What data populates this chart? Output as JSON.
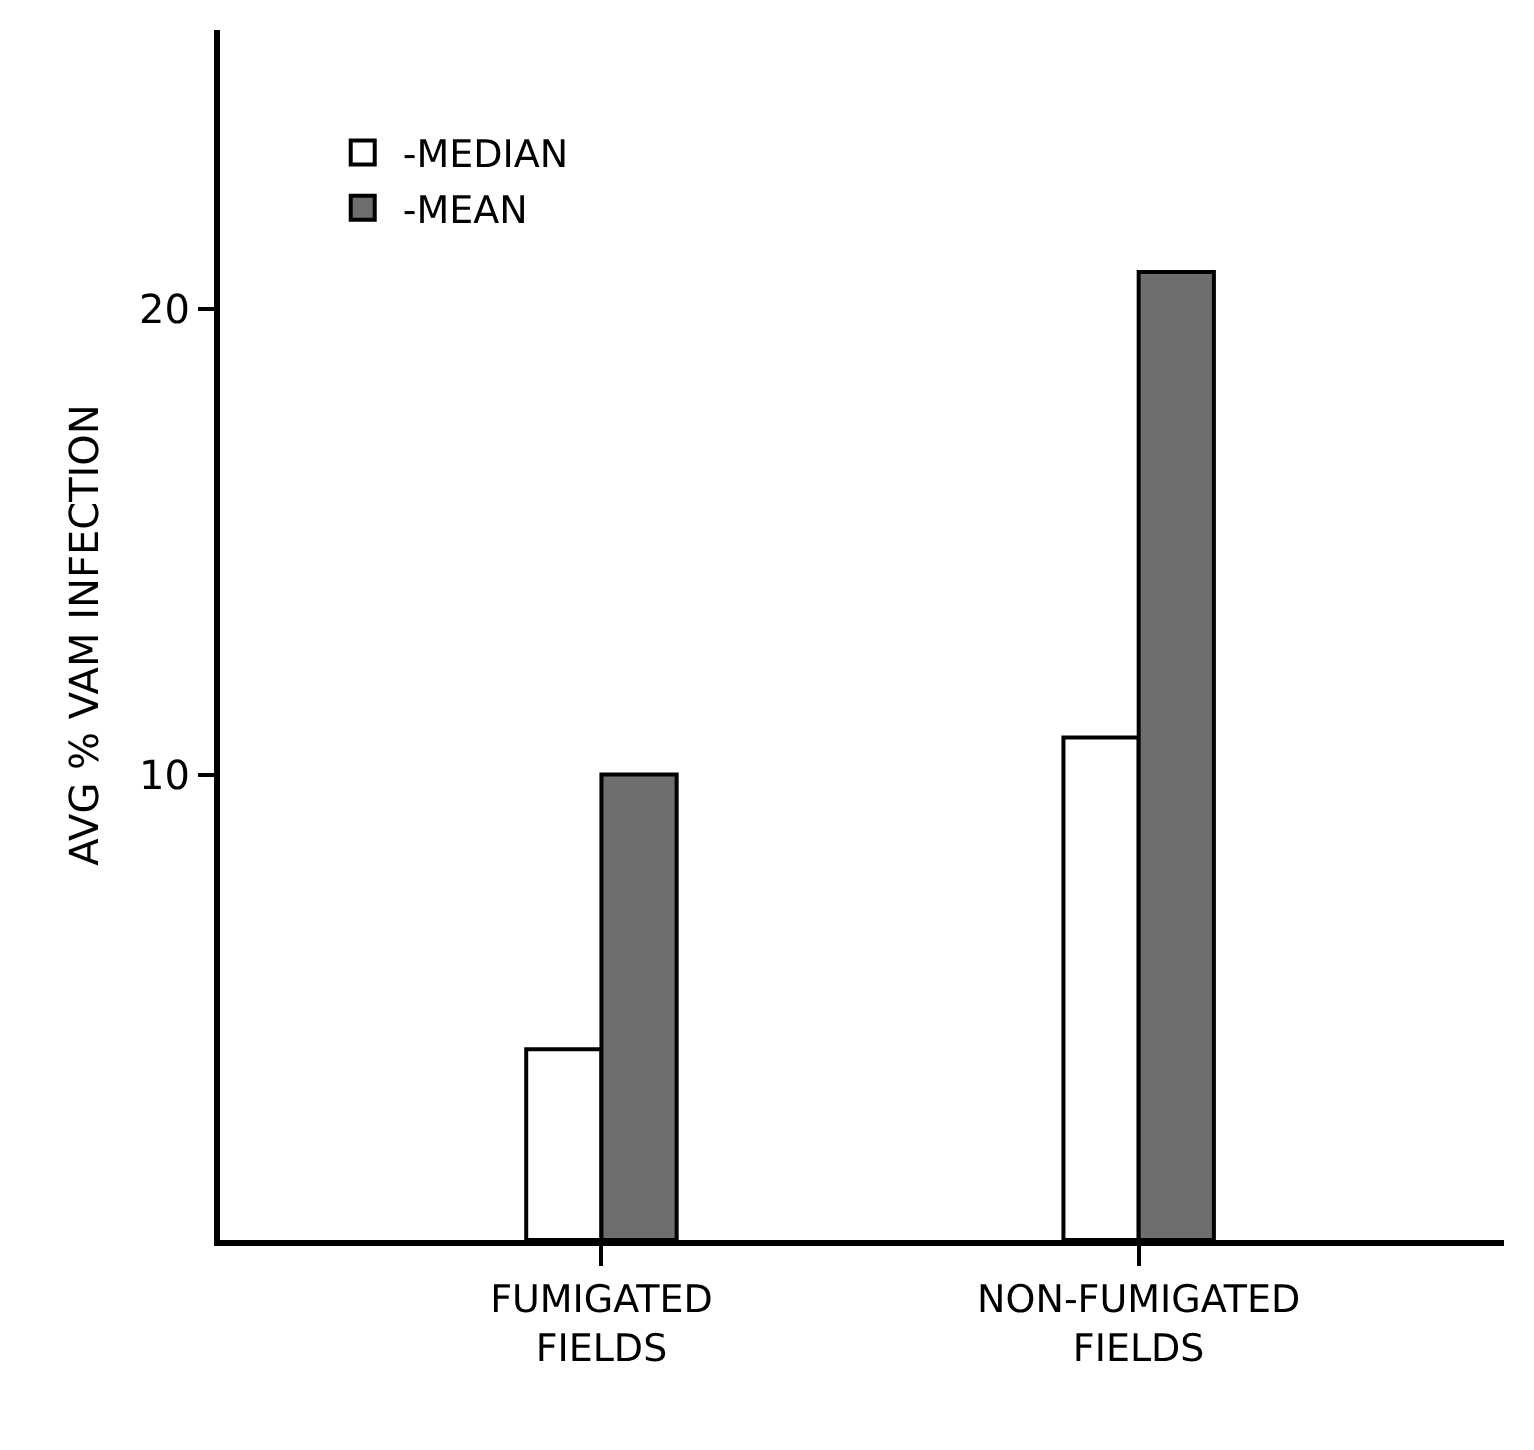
{
  "chart_data": {
    "type": "bar",
    "ylabel": "AVG % VAM INFECTION",
    "categories": [
      "FUMIGATED\nFIELDS",
      "NON-FUMIGATED\nFIELDS"
    ],
    "series": [
      {
        "name": "-MEDIAN",
        "color": "#ffffff",
        "values": [
          4.1,
          10.8
        ]
      },
      {
        "name": "-MEAN",
        "color": "#6e6e6e",
        "values": [
          10.0,
          20.8
        ]
      }
    ],
    "ylim": [
      0,
      26
    ],
    "yticks": [
      10,
      20
    ],
    "legend": "top left"
  }
}
